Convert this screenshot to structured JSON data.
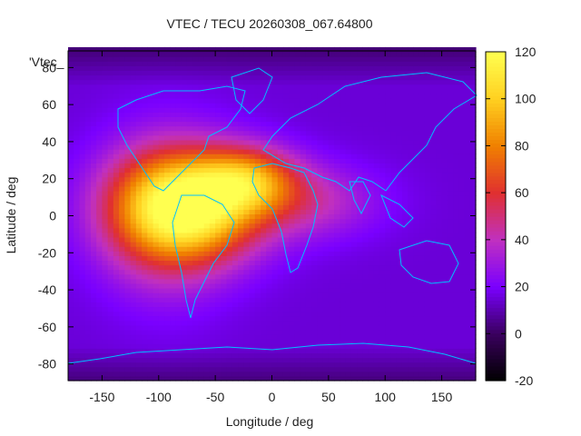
{
  "chart_data": {
    "type": "heatmap",
    "title": "VTEC / TECU 20260308_067.64800",
    "xlabel": "Longitude / deg",
    "ylabel": "Latitude / deg",
    "xlim": [
      -180,
      180
    ],
    "ylim": [
      -89,
      89
    ],
    "x_ticks": [
      -150,
      -100,
      -50,
      0,
      50,
      100,
      150
    ],
    "y_ticks": [
      -80,
      -60,
      -40,
      -20,
      0,
      20,
      40,
      60,
      80
    ],
    "series_label": "'Vtec_",
    "colorbar": {
      "range": [
        -20,
        120
      ],
      "ticks": [
        -20,
        0,
        20,
        40,
        60,
        80,
        100,
        120
      ],
      "palette": [
        "#000000",
        "#3a005e",
        "#7a00ff",
        "#c030c0",
        "#e03030",
        "#f08000",
        "#ffd020",
        "#ffff50"
      ]
    },
    "vtec_model": {
      "background": 15,
      "peaks": [
        {
          "lon": -75,
          "lat": 5,
          "amp": 95,
          "sigma_lon": 45,
          "sigma_lat": 20
        },
        {
          "lon": -20,
          "lat": 20,
          "amp": 50,
          "sigma_lon": 30,
          "sigma_lat": 12
        },
        {
          "lon": -95,
          "lat": 0,
          "amp": 30,
          "sigma_lon": 40,
          "sigma_lat": 30
        },
        {
          "lon": 30,
          "lat": 8,
          "amp": 25,
          "sigma_lon": 45,
          "sigma_lat": 14
        }
      ]
    },
    "coastline_color": "#00c0ff"
  }
}
